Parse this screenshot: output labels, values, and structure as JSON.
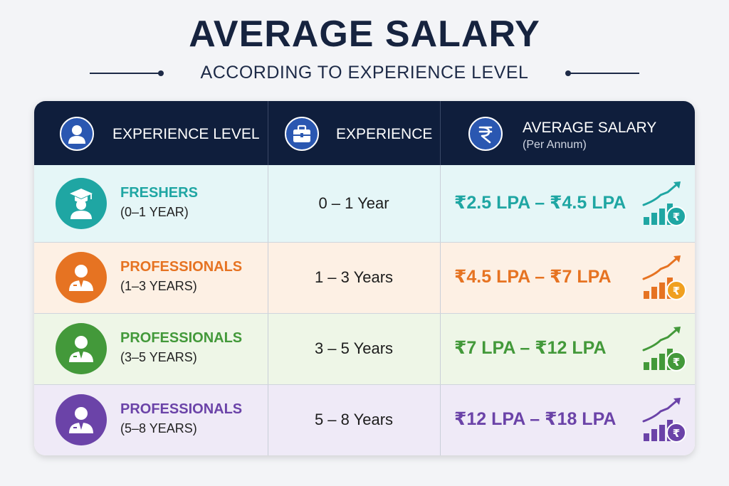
{
  "title": "AVERAGE SALARY",
  "subtitle": "ACCORDING TO EXPERIENCE LEVEL",
  "header": {
    "col1": "EXPERIENCE LEVEL",
    "col2": "EXPERIENCE",
    "col3": "AVERAGE SALARY",
    "col3_sub": "(Per Annum)",
    "icons": [
      "person-icon",
      "briefcase-icon",
      "rupee-icon"
    ]
  },
  "chart_data": {
    "type": "table",
    "columns": [
      "EXPERIENCE LEVEL",
      "EXPERIENCE",
      "AVERAGE SALARY (Per Annum)"
    ],
    "rows": [
      {
        "level": "FRESHERS",
        "range": "(0–1 YEAR)",
        "experience": "0 – 1 Year",
        "salary": "₹2.5 LPA – ₹4.5 LPA",
        "salary_min": 2.5,
        "salary_max": 4.5,
        "color": "#1fa6a3",
        "bg": "#e5f6f7",
        "icon": "graduate-icon"
      },
      {
        "level": "PROFESSIONALS",
        "range": "(1–3 YEARS)",
        "experience": "1 – 3 Years",
        "salary": "₹4.5 LPA – ₹7 LPA",
        "salary_min": 4.5,
        "salary_max": 7,
        "color": "#e67322",
        "bg": "#fdf0e4",
        "icon": "professional-icon"
      },
      {
        "level": "PROFESSIONALS",
        "range": "(3–5 YEARS)",
        "experience": "3 – 5 Years",
        "salary": "₹7 LPA – ₹12 LPA",
        "salary_min": 7,
        "salary_max": 12,
        "color": "#43993a",
        "bg": "#eef6e7",
        "icon": "professional-icon"
      },
      {
        "level": "PROFESSIONALS",
        "range": "(5–8 YEARS)",
        "experience": "5 – 8 Years",
        "salary": "₹12 LPA – ₹18 LPA",
        "salary_min": 12,
        "salary_max": 18,
        "color": "#6b43a8",
        "bg": "#efeaf7",
        "icon": "professional-icon"
      }
    ],
    "growth_icon_colors": [
      "#1fa6a3",
      "#f0a020",
      "#43993a",
      "#6b43a8"
    ]
  },
  "colors": {
    "header_bg": "#0f1e3c",
    "title": "#16233f",
    "header_icon": "#2a57b1"
  }
}
